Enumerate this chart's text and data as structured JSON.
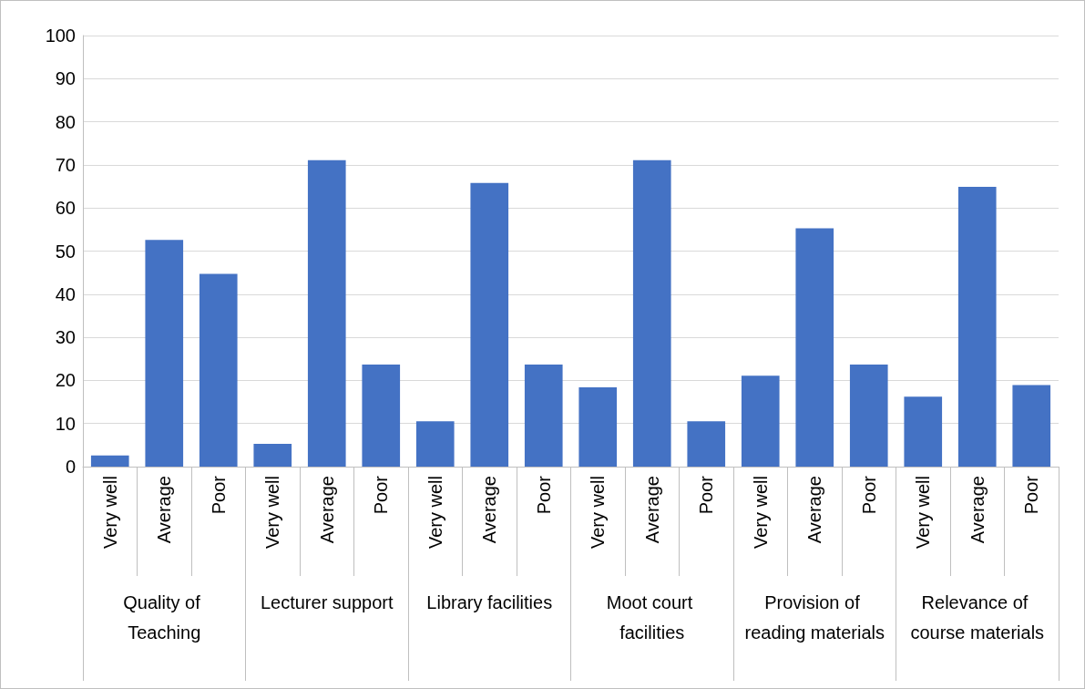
{
  "chart_data": {
    "type": "bar",
    "categories": [
      "Very well",
      "Average",
      "Poor",
      "Very well",
      "Average",
      "Poor",
      "Very well",
      "Average",
      "Poor",
      "Very well",
      "Average",
      "Poor",
      "Very well",
      "Average",
      "Poor",
      "Very well",
      "Average",
      "Poor"
    ],
    "values": [
      2.6,
      52.6,
      44.7,
      5.3,
      71.1,
      23.7,
      10.5,
      65.8,
      23.7,
      18.4,
      71.1,
      10.5,
      21.1,
      55.3,
      23.7,
      16.2,
      64.9,
      18.9
    ],
    "color": "#4472c4",
    "ylim": [
      0,
      100
    ],
    "yticks": [
      0,
      10,
      20,
      30,
      40,
      50,
      60,
      70,
      80,
      90,
      100
    ],
    "grid": "y",
    "annotations": [
      "Quality of Teaching",
      "Lecturer support",
      "Library facilities",
      "Moot court facilities",
      "Provision of reading materials",
      "Relevance of course materials"
    ]
  }
}
